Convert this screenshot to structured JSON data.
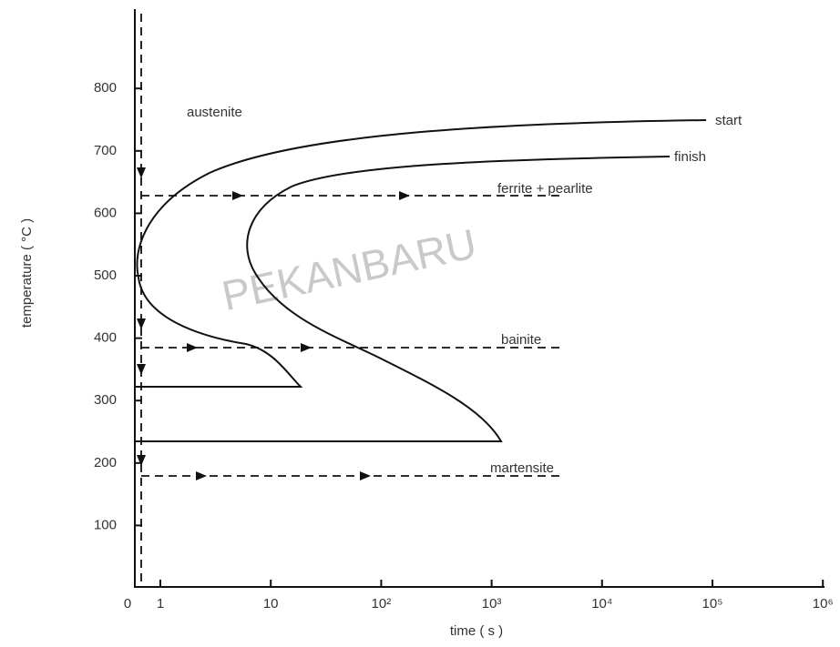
{
  "watermark": "PEKANBARU",
  "y_axis": {
    "label": "temperature ( °C )",
    "ticks": [
      100,
      200,
      300,
      400,
      500,
      600,
      700,
      800
    ]
  },
  "x_axis": {
    "label": "time ( s )",
    "ticks": [
      "0",
      "1",
      "10",
      "10²",
      "10³",
      "10⁴",
      "10⁵",
      "10⁶"
    ]
  },
  "labels": {
    "austenite": "austenite",
    "start": "start",
    "finish": "finish",
    "ferrite_pearlite": "ferrite + pearlite",
    "bainite": "bainite",
    "martensite": "martensite"
  }
}
